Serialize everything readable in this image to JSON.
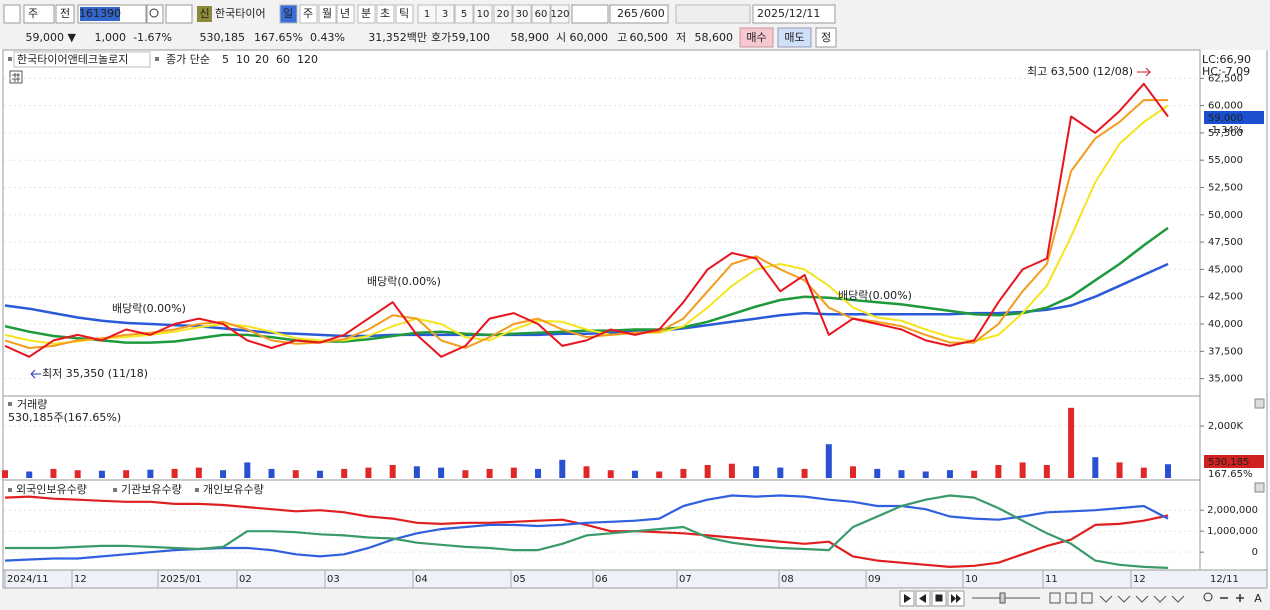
{
  "toolbar": {
    "period_type": "주",
    "prev": "전",
    "code": "161390",
    "badge": "신",
    "name": "한국타이어",
    "periods": [
      "일",
      "주",
      "월",
      "년",
      "분",
      "초",
      "틱"
    ],
    "intervals": [
      "1",
      "3",
      "5",
      "10",
      "20",
      "30",
      "60",
      "120"
    ],
    "count": "265",
    "total": "/600",
    "date": "2025/12/11"
  },
  "quote": {
    "price": "59,000 ▼",
    "change": "1,000",
    "rate": "-1.67%",
    "volume": "530,185",
    "volume_rate": "167.65%",
    "turnover": "0.43%",
    "amount": "31,352백만",
    "bid_ask_label": "호가",
    "ask": "59,100",
    "bid": "58,900",
    "open_label": "시",
    "open": "60,000",
    "high_label": "고",
    "high": "60,500",
    "low_label": "저",
    "low": "58,600",
    "buy": "매수",
    "sell": "매도",
    "eval": "정"
  },
  "price_panel": {
    "name": "한국타이어앤테크놀로지",
    "ma_label": "종가 단순",
    "ylim": [
      33500,
      65000
    ],
    "yticks": [
      {
        "value": 35000,
        "label": "35,000"
      },
      {
        "value": 37500,
        "label": "37,500"
      },
      {
        "value": 40000,
        "label": "40,000"
      },
      {
        "value": 42500,
        "label": "42,500"
      },
      {
        "value": 45000,
        "label": "45,000"
      },
      {
        "value": 47500,
        "label": "47,500"
      },
      {
        "value": 50000,
        "label": "50,000"
      },
      {
        "value": 52500,
        "label": "52,500"
      },
      {
        "value": 55000,
        "label": "55,000"
      },
      {
        "value": 57500,
        "label": "57,500"
      },
      {
        "value": 60000,
        "label": "60,000"
      },
      {
        "value": 62500,
        "label": "62,500"
      }
    ],
    "lc": "LC:66,90",
    "hc": "HC:-7,09",
    "last": "59,000",
    "last_rate": "-1.34%",
    "annotations": [
      "최고 63,500 (12/08)",
      "최저 35,350 (11/18)",
      "배당락(0.00%)",
      "배당락(0.00%)",
      "배당락(0.00%)"
    ],
    "series": [
      {
        "name": "5",
        "color": "#e8141e",
        "values": [
          38000,
          37000,
          38500,
          39000,
          38500,
          39500,
          39000,
          40000,
          40500,
          40000,
          38500,
          37800,
          38500,
          38300,
          39000,
          40500,
          42000,
          39000,
          37000,
          38000,
          40500,
          41000,
          40000,
          38000,
          38500,
          39500,
          39000,
          39500,
          42000,
          45000,
          46500,
          46000,
          43000,
          44500,
          39000,
          40500,
          40000,
          39500,
          38500,
          38000,
          38500,
          42000,
          45000,
          46000,
          59000,
          57500,
          59500,
          62000,
          59000
        ]
      },
      {
        "name": "10",
        "color": "#f39c1e",
        "values": [
          38500,
          37800,
          38000,
          38500,
          38700,
          39000,
          39200,
          39500,
          40000,
          40200,
          39500,
          38500,
          38200,
          38300,
          38600,
          39500,
          40800,
          40500,
          38500,
          37800,
          38800,
          40000,
          40500,
          39500,
          38800,
          39000,
          39200,
          39300,
          40500,
          43000,
          45500,
          46200,
          45000,
          44000,
          41500,
          40500,
          40200,
          39800,
          39000,
          38300,
          38300,
          40000,
          43000,
          45500,
          54000,
          57000,
          58500,
          60500,
          60500
        ]
      },
      {
        "name": "20",
        "color": "#f5e51e",
        "values": [
          39000,
          38500,
          38200,
          38400,
          38700,
          38800,
          39000,
          39300,
          39700,
          40000,
          39800,
          39300,
          38700,
          38500,
          38500,
          38900,
          39800,
          40500,
          40000,
          38800,
          38500,
          39500,
          40300,
          40200,
          39500,
          39000,
          39200,
          39200,
          39800,
          41500,
          43500,
          45000,
          45500,
          45000,
          43500,
          41500,
          40600,
          40300,
          39500,
          38800,
          38400,
          39000,
          41000,
          43500,
          48000,
          53000,
          56500,
          58500,
          60000
        ]
      },
      {
        "name": "60",
        "color": "#1e9a3c",
        "values": [
          39800,
          39300,
          38900,
          38700,
          38500,
          38300,
          38300,
          38400,
          38700,
          39000,
          39000,
          38800,
          38500,
          38400,
          38400,
          38600,
          38900,
          39200,
          39300,
          39100,
          39000,
          39100,
          39200,
          39300,
          39400,
          39400,
          39500,
          39500,
          39700,
          40200,
          40900,
          41600,
          42200,
          42500,
          42400,
          42200,
          42000,
          41800,
          41500,
          41200,
          40900,
          40800,
          41000,
          41500,
          42500,
          44000,
          45500,
          47200,
          48800
        ]
      },
      {
        "name": "120",
        "color": "#2a5ad8",
        "values": [
          41700,
          41400,
          41000,
          40600,
          40300,
          40100,
          40000,
          39900,
          39800,
          39600,
          39400,
          39200,
          39100,
          39000,
          38900,
          38900,
          39000,
          39000,
          39000,
          39000,
          39000,
          39000,
          39000,
          39100,
          39100,
          39200,
          39300,
          39400,
          39600,
          39900,
          40200,
          40500,
          40800,
          41000,
          40900,
          40900,
          40900,
          40900,
          40900,
          40900,
          41000,
          41000,
          41100,
          41300,
          41700,
          42500,
          43500,
          44500,
          45500
        ]
      }
    ]
  },
  "volume_panel": {
    "name": "거래량",
    "summary": "530,185주(167.65%)",
    "ylim": [
      0,
      3000000
    ],
    "yticks": [
      {
        "value": 2000000,
        "label": "2,000K"
      }
    ],
    "last": "530,185",
    "last_rate": "167.65%",
    "up_color": "#e02828",
    "down_color": "#2850d0",
    "values": [
      300000,
      250000,
      350000,
      300000,
      280000,
      300000,
      320000,
      350000,
      400000,
      300000,
      600000,
      350000,
      300000,
      280000,
      350000,
      400000,
      500000,
      450000,
      400000,
      300000,
      350000,
      400000,
      350000,
      700000,
      450000,
      300000,
      280000,
      250000,
      350000,
      500000,
      550000,
      450000,
      400000,
      350000,
      1300000,
      450000,
      350000,
      300000,
      250000,
      300000,
      280000,
      500000,
      600000,
      500000,
      2700000,
      800000,
      600000,
      400000,
      530185
    ]
  },
  "holdings_panel": {
    "ylim": [
      -850000,
      3250000
    ],
    "yticks": [
      {
        "value": 2000000,
        "label": "2,000,000"
      },
      {
        "value": 1000000,
        "label": "1,000,000"
      },
      0
    ],
    "series": [
      {
        "name": "외국인보유수량",
        "color": "#e02020",
        "values": [
          2600000,
          2650000,
          2550000,
          2500000,
          2450000,
          2400000,
          2400000,
          2300000,
          2300000,
          2250000,
          2150000,
          2050000,
          1950000,
          2000000,
          1900000,
          1700000,
          1600000,
          1400000,
          1350000,
          1400000,
          1400000,
          1450000,
          1500000,
          1550000,
          1300000,
          1000000,
          1000000,
          950000,
          900000,
          800000,
          700000,
          600000,
          500000,
          400000,
          500000,
          -200000,
          -400000,
          -500000,
          -600000,
          -700000,
          -650000,
          -500000,
          -100000,
          300000,
          600000,
          1300000,
          1350000,
          1500000,
          1750000
        ]
      },
      {
        "name": "기관보유수량",
        "color": "#3060e0",
        "values": [
          -400000,
          -350000,
          -300000,
          -300000,
          -200000,
          -100000,
          0,
          100000,
          150000,
          200000,
          200000,
          100000,
          -100000,
          -200000,
          -100000,
          200000,
          600000,
          900000,
          1100000,
          1200000,
          1300000,
          1300000,
          1250000,
          1300000,
          1400000,
          1450000,
          1500000,
          1600000,
          2200000,
          2500000,
          2700000,
          2650000,
          2700000,
          2650000,
          2500000,
          2400000,
          2200000,
          2200000,
          2050000,
          1700000,
          1600000,
          1550000,
          1700000,
          1900000,
          1950000,
          2000000,
          2100000,
          2200000,
          1600000
        ]
      },
      {
        "name": "개인보유수량",
        "color": "#3a9a6a",
        "values": [
          200000,
          200000,
          200000,
          250000,
          300000,
          300000,
          250000,
          200000,
          150000,
          250000,
          1000000,
          1000000,
          950000,
          850000,
          800000,
          700000,
          650000,
          450000,
          350000,
          250000,
          200000,
          100000,
          100000,
          400000,
          800000,
          900000,
          1000000,
          1100000,
          1200000,
          700000,
          450000,
          300000,
          200000,
          150000,
          100000,
          1200000,
          1700000,
          2200000,
          2500000,
          2700000,
          2600000,
          2100000,
          1500000,
          900000,
          400000,
          -400000,
          -600000,
          -700000,
          -750000
        ]
      }
    ]
  },
  "x_labels": [
    "2024/11",
    "12",
    "2025/01",
    "02",
    "03",
    "04",
    "05",
    "06",
    "07",
    "08",
    "09",
    "10",
    "11",
    "12"
  ],
  "x_end_label": "12/11",
  "zoom_label": "A"
}
